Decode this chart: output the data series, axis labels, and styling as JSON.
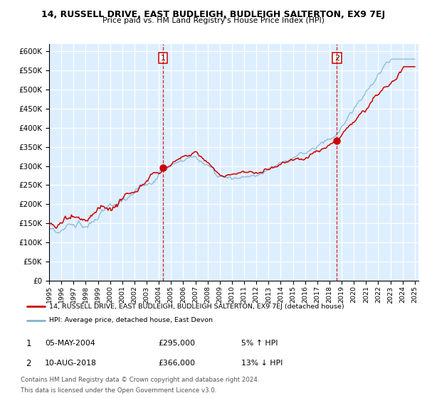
{
  "title": "14, RUSSELL DRIVE, EAST BUDLEIGH, BUDLEIGH SALTERTON, EX9 7EJ",
  "subtitle": "Price paid vs. HM Land Registry's House Price Index (HPI)",
  "legend_line1": "14, RUSSELL DRIVE, EAST BUDLEIGH, BUDLEIGH SALTERTON, EX9 7EJ (detached house)",
  "legend_line2": "HPI: Average price, detached house, East Devon",
  "annotation1_date": "05-MAY-2004",
  "annotation1_price": "£295,000",
  "annotation1_hpi": "5% ↑ HPI",
  "annotation2_date": "10-AUG-2018",
  "annotation2_price": "£366,000",
  "annotation2_hpi": "13% ↓ HPI",
  "footnote1": "Contains HM Land Registry data © Crown copyright and database right 2024.",
  "footnote2": "This data is licensed under the Open Government Licence v3.0.",
  "red_color": "#cc0000",
  "blue_color": "#7fb3d3",
  "sale1_x": 2004.35,
  "sale1_y": 295000,
  "sale2_x": 2018.61,
  "sale2_y": 366000,
  "vline1_x": 2004.35,
  "vline2_x": 2018.61,
  "background_color": "#ddeeff",
  "grid_color": "white",
  "yticks": [
    0,
    50000,
    100000,
    150000,
    200000,
    250000,
    300000,
    350000,
    400000,
    450000,
    500000,
    550000,
    600000
  ],
  "ylim": [
    0,
    620000
  ],
  "xlim_min": 1995,
  "xlim_max": 2025.3
}
